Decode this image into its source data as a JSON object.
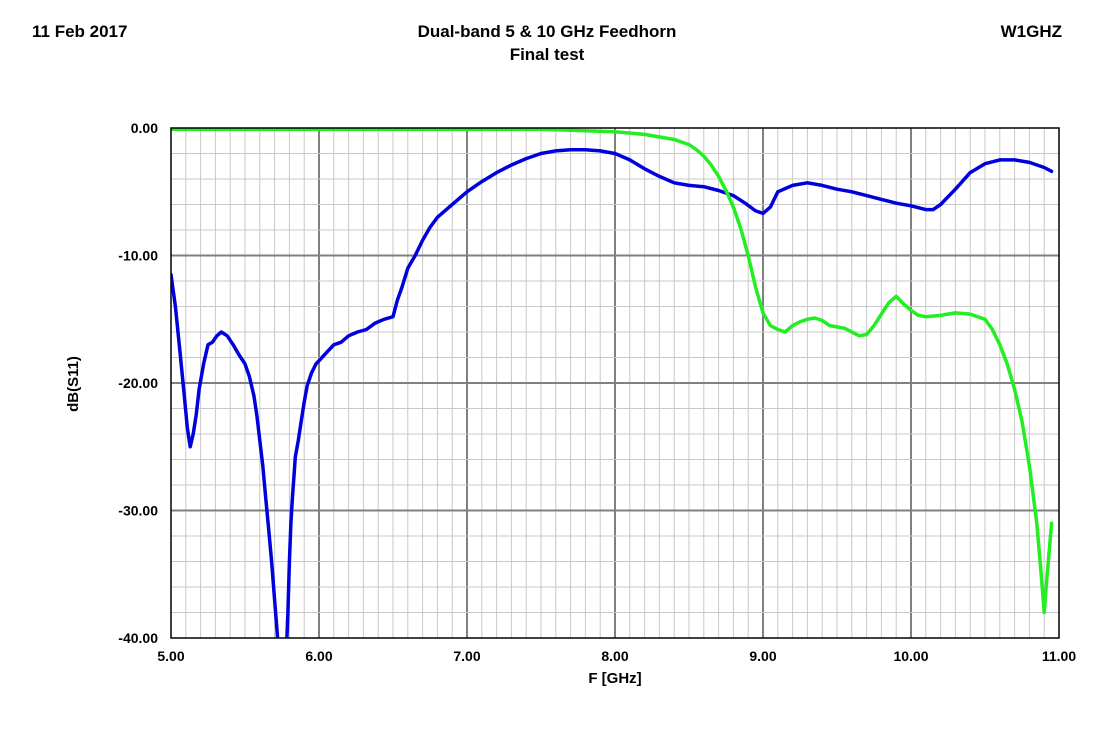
{
  "header": {
    "date": "11 Feb 2017",
    "title": "Dual-band 5 & 10 GHz Feedhorn",
    "subtitle": "Final test",
    "callsign": "W1GHZ"
  },
  "chart_data": {
    "type": "line",
    "title": "Dual-band 5 & 10 GHz Feedhorn",
    "subtitle": "Final test",
    "xlabel": "F [GHz]",
    "ylabel": "dB(S11)",
    "xlim": [
      5.0,
      11.0
    ],
    "ylim": [
      -40.0,
      0.0
    ],
    "x_ticks": [
      "5.00",
      "6.00",
      "7.00",
      "8.00",
      "9.00",
      "10.00",
      "11.00"
    ],
    "y_ticks": [
      "0.00",
      "-10.00",
      "-20.00",
      "-30.00",
      "-40.00"
    ],
    "grid": true,
    "legend": "none",
    "series": [
      {
        "color": "#0000dd",
        "x": [
          5.0,
          5.03,
          5.06,
          5.09,
          5.11,
          5.13,
          5.15,
          5.17,
          5.19,
          5.22,
          5.25,
          5.28,
          5.31,
          5.34,
          5.38,
          5.42,
          5.46,
          5.5,
          5.53,
          5.56,
          5.58,
          5.6,
          5.62,
          5.64,
          5.66,
          5.68,
          5.7,
          5.72,
          5.74,
          5.75,
          5.76,
          5.77,
          5.78,
          5.79,
          5.8,
          5.81,
          5.82,
          5.83,
          5.84,
          5.86,
          5.88,
          5.9,
          5.92,
          5.95,
          5.98,
          6.02,
          6.06,
          6.1,
          6.15,
          6.2,
          6.26,
          6.32,
          6.38,
          6.44,
          6.5,
          6.53,
          6.56,
          6.6,
          6.65,
          6.7,
          6.75,
          6.8,
          6.9,
          7.0,
          7.1,
          7.2,
          7.3,
          7.4,
          7.5,
          7.6,
          7.7,
          7.8,
          7.9,
          8.0,
          8.1,
          8.2,
          8.3,
          8.4,
          8.5,
          8.6,
          8.7,
          8.8,
          8.88,
          8.95,
          9.0,
          9.05,
          9.1,
          9.2,
          9.3,
          9.4,
          9.5,
          9.6,
          9.7,
          9.8,
          9.9,
          10.0,
          10.1,
          10.15,
          10.2,
          10.3,
          10.4,
          10.5,
          10.6,
          10.7,
          10.8,
          10.9,
          10.95
        ],
        "values": [
          -11.5,
          -14.0,
          -17.5,
          -21.0,
          -23.5,
          -25.0,
          -24.0,
          -22.5,
          -20.5,
          -18.5,
          -17.0,
          -16.8,
          -16.3,
          -16.0,
          -16.3,
          -17.0,
          -17.8,
          -18.5,
          -19.5,
          -21.0,
          -22.5,
          -24.5,
          -26.5,
          -29.0,
          -31.5,
          -34.0,
          -37.0,
          -40.0,
          -41.0,
          -41.0,
          -41.0,
          -41.0,
          -41.0,
          -38.0,
          -34.0,
          -31.0,
          -29.0,
          -27.5,
          -25.8,
          -24.5,
          -23.0,
          -21.5,
          -20.2,
          -19.2,
          -18.5,
          -18.0,
          -17.5,
          -17.0,
          -16.8,
          -16.3,
          -16.0,
          -15.8,
          -15.3,
          -15.0,
          -14.8,
          -13.5,
          -12.5,
          -11.0,
          -10.0,
          -8.8,
          -7.8,
          -7.0,
          -6.0,
          -5.0,
          -4.2,
          -3.5,
          -2.9,
          -2.4,
          -2.0,
          -1.8,
          -1.7,
          -1.7,
          -1.8,
          -2.0,
          -2.5,
          -3.2,
          -3.8,
          -4.3,
          -4.5,
          -4.6,
          -4.9,
          -5.3,
          -5.9,
          -6.5,
          -6.7,
          -6.2,
          -5.0,
          -4.5,
          -4.3,
          -4.5,
          -4.8,
          -5.0,
          -5.3,
          -5.6,
          -5.9,
          -6.1,
          -6.4,
          -6.4,
          -6.0,
          -4.8,
          -3.5,
          -2.8,
          -2.5,
          -2.5,
          -2.7,
          -3.1,
          -3.4
        ]
      },
      {
        "color": "#22ee22",
        "x": [
          5.0,
          5.5,
          6.0,
          6.5,
          7.0,
          7.5,
          8.0,
          8.2,
          8.4,
          8.5,
          8.55,
          8.6,
          8.65,
          8.7,
          8.75,
          8.8,
          8.85,
          8.9,
          8.95,
          9.0,
          9.05,
          9.1,
          9.15,
          9.2,
          9.25,
          9.3,
          9.35,
          9.4,
          9.45,
          9.5,
          9.55,
          9.6,
          9.65,
          9.7,
          9.75,
          9.8,
          9.85,
          9.9,
          9.95,
          10.0,
          10.05,
          10.1,
          10.2,
          10.3,
          10.4,
          10.5,
          10.55,
          10.6,
          10.65,
          10.7,
          10.75,
          10.8,
          10.85,
          10.88,
          10.9,
          10.92,
          10.95
        ],
        "values": [
          -0.1,
          -0.1,
          -0.1,
          -0.1,
          -0.1,
          -0.1,
          -0.3,
          -0.5,
          -0.9,
          -1.3,
          -1.7,
          -2.2,
          -2.9,
          -3.8,
          -4.9,
          -6.2,
          -7.9,
          -10.0,
          -12.5,
          -14.5,
          -15.5,
          -15.8,
          -16.0,
          -15.5,
          -15.2,
          -15.0,
          -14.9,
          -15.1,
          -15.5,
          -15.6,
          -15.7,
          -16.0,
          -16.3,
          -16.2,
          -15.5,
          -14.6,
          -13.7,
          -13.2,
          -13.8,
          -14.3,
          -14.7,
          -14.8,
          -14.7,
          -14.5,
          -14.6,
          -15.0,
          -15.8,
          -17.0,
          -18.5,
          -20.5,
          -23.0,
          -26.5,
          -31.0,
          -35.0,
          -38.0,
          -35.0,
          -31.0
        ]
      }
    ]
  }
}
